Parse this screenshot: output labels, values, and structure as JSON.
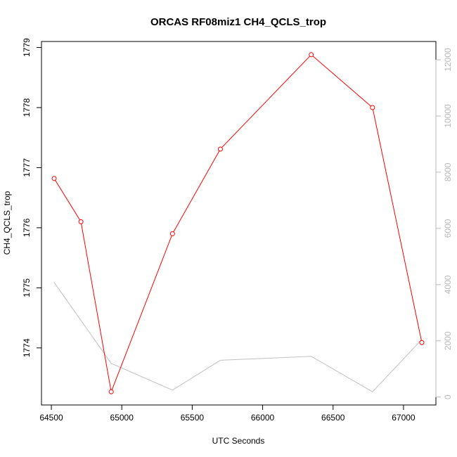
{
  "chart_data": {
    "type": "line",
    "title": "ORCAS RF08miz1 CH4_QCLS_trop",
    "xlabel": "UTC Seconds",
    "ylabel": "CH4_QCLS_trop",
    "x_ticks": [
      64500,
      65000,
      65500,
      66000,
      66500,
      67000
    ],
    "y_ticks": [
      1774,
      1775,
      1776,
      1777,
      1778,
      1779
    ],
    "y2_ticks": [
      0,
      2000,
      4000,
      6000,
      8000,
      10000,
      12000
    ],
    "xlim": [
      64430,
      67230
    ],
    "ylim": [
      1773.05,
      1779.1
    ],
    "y2lim": [
      -280,
      12650
    ],
    "series": [
      {
        "axis": "left",
        "color": "#ff0000",
        "markers": "open-circle",
        "x": [
          64520,
          64710,
          64925,
          65360,
          65700,
          66345,
          66780,
          67130
        ],
        "y": [
          1776.82,
          1776.1,
          1773.27,
          1775.9,
          1777.31,
          1778.88,
          1778.0,
          1774.09
        ]
      },
      {
        "axis": "right",
        "color": "#c0c0c0",
        "markers": "none",
        "x": [
          64520,
          64925,
          65360,
          65700,
          66345,
          66780,
          67130
        ],
        "y": [
          4080,
          1200,
          250,
          1310,
          1450,
          190,
          2050
        ]
      }
    ]
  }
}
